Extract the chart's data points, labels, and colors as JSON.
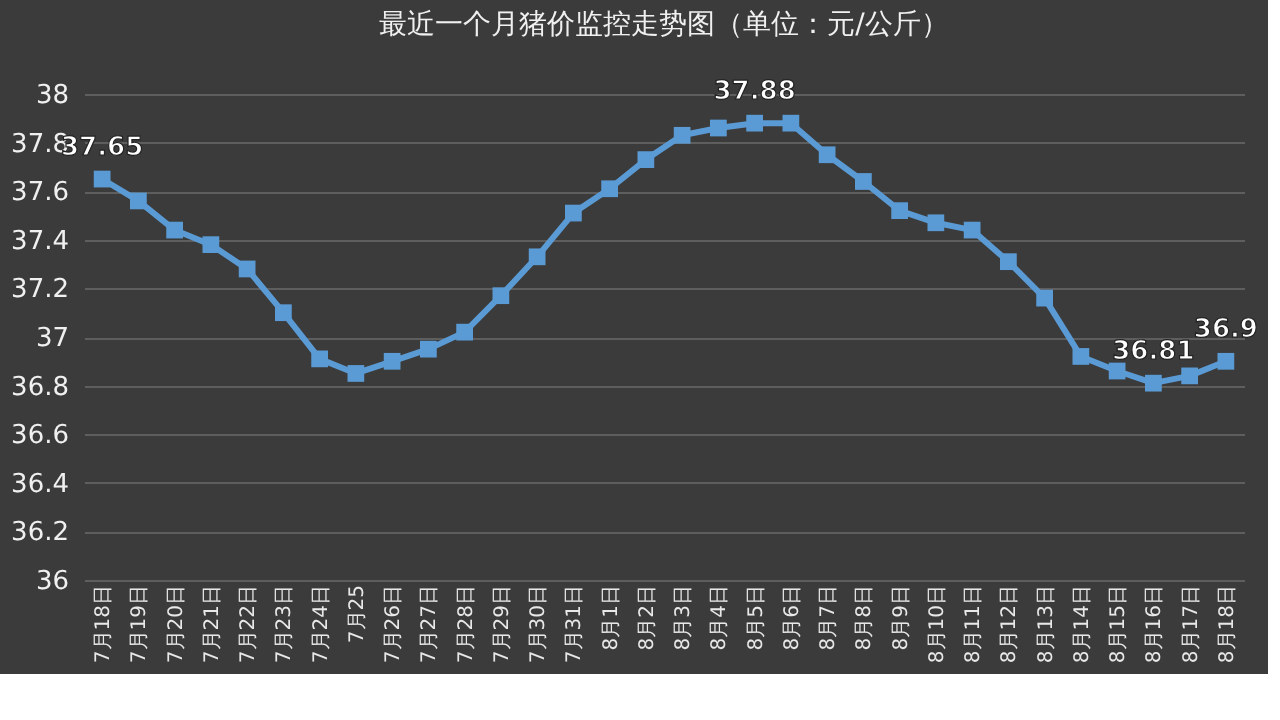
{
  "chart_data": {
    "type": "line",
    "title": "最近一个月猪价监控走势图（单位：元/公斤）",
    "categories": [
      "7月18日",
      "7月19日",
      "7月20日",
      "7月21日",
      "7月22日",
      "7月23日",
      "7月24日",
      "7月25",
      "7月26日",
      "7月27日",
      "7月28日",
      "7月29日",
      "7月30日",
      "7月31日",
      "8月1日",
      "8月2日",
      "8月3日",
      "8月4日",
      "8月5日",
      "8月6日",
      "8月7日",
      "8月8日",
      "8月9日",
      "8月10日",
      "8月11日",
      "8月12日",
      "8月13日",
      "8月14日",
      "8月15日",
      "8月16日",
      "8月17日",
      "8月18日"
    ],
    "series": [
      {
        "color": "#5b9bd5",
        "values": [
          37.65,
          37.56,
          37.44,
          37.38,
          37.28,
          37.1,
          36.91,
          36.85,
          36.9,
          36.95,
          37.02,
          37.17,
          37.33,
          37.51,
          37.61,
          37.73,
          37.83,
          37.86,
          37.88,
          37.88,
          37.75,
          37.64,
          37.52,
          37.47,
          37.44,
          37.31,
          37.16,
          36.92,
          36.86,
          36.81,
          36.84,
          36.9
        ],
        "value_labels": [
          "37.65",
          null,
          null,
          null,
          null,
          null,
          null,
          null,
          null,
          null,
          null,
          null,
          null,
          null,
          null,
          null,
          null,
          null,
          "37.88",
          null,
          null,
          null,
          null,
          null,
          null,
          null,
          null,
          null,
          null,
          "36.81",
          null,
          "36.9"
        ]
      }
    ],
    "ylim": [
      36,
      38
    ],
    "yticks": [
      36,
      36.2,
      36.4,
      36.6,
      36.8,
      37,
      37.2,
      37.4,
      37.6,
      37.8,
      38
    ],
    "grid": "y",
    "marker": "square",
    "line_style": "solid"
  }
}
